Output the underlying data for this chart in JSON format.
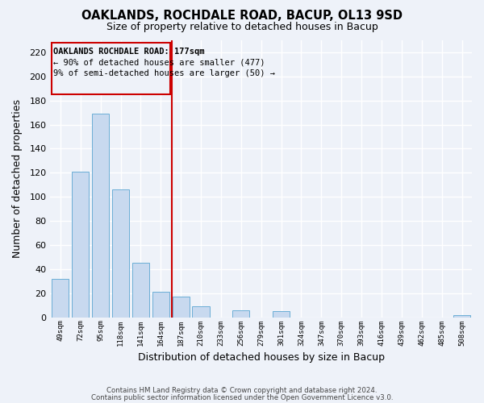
{
  "title": "OAKLANDS, ROCHDALE ROAD, BACUP, OL13 9SD",
  "subtitle": "Size of property relative to detached houses in Bacup",
  "xlabel": "Distribution of detached houses by size in Bacup",
  "ylabel": "Number of detached properties",
  "bar_color": "#c8d9ef",
  "bar_edge_color": "#6baed6",
  "bin_labels": [
    "49sqm",
    "72sqm",
    "95sqm",
    "118sqm",
    "141sqm",
    "164sqm",
    "187sqm",
    "210sqm",
    "233sqm",
    "256sqm",
    "279sqm",
    "301sqm",
    "324sqm",
    "347sqm",
    "370sqm",
    "393sqm",
    "416sqm",
    "439sqm",
    "462sqm",
    "485sqm",
    "508sqm"
  ],
  "bar_heights": [
    32,
    121,
    169,
    106,
    45,
    21,
    17,
    9,
    0,
    6,
    0,
    5,
    0,
    0,
    0,
    0,
    0,
    0,
    0,
    0,
    2
  ],
  "ylim": [
    0,
    230
  ],
  "yticks": [
    0,
    20,
    40,
    60,
    80,
    100,
    120,
    140,
    160,
    180,
    200,
    220
  ],
  "property_line_bin": 5.565,
  "annotation_title": "OAKLANDS ROCHDALE ROAD: 177sqm",
  "annotation_line1": "← 90% of detached houses are smaller (477)",
  "annotation_line2": "9% of semi-detached houses are larger (50) →",
  "box_color": "#cc0000",
  "footer1": "Contains HM Land Registry data © Crown copyright and database right 2024.",
  "footer2": "Contains public sector information licensed under the Open Government Licence v3.0.",
  "background_color": "#eef2f9",
  "grid_color": "#ffffff"
}
